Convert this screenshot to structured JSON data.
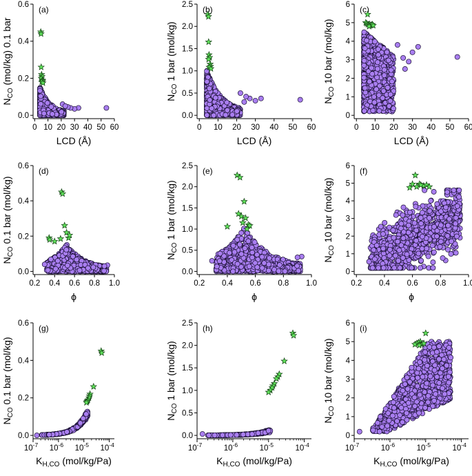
{
  "colors": {
    "point_fill": "#a97ef0",
    "point_edge": "#1a1033",
    "star_fill": "#5fe05a",
    "star_edge": "#124012"
  },
  "chart_data": [
    {
      "id": "a",
      "panel_label": "(a)",
      "type": "scatter",
      "xlabel": "LCD (Å)",
      "ylabel_main": "N",
      "ylabel_sub": "CO",
      "ylabel_rest": " (mol/kg) 0.1 bar",
      "xlim": [
        0,
        60
      ],
      "ylim": [
        0,
        0.6
      ],
      "xticks": [
        0,
        10,
        20,
        30,
        40,
        50,
        60
      ],
      "xtick_labels": [
        "0",
        "10",
        "20",
        "30",
        "40",
        "50",
        "60"
      ],
      "yticks": [
        0,
        0.2,
        0.4,
        0.6
      ],
      "ytick_labels": [
        "0.0",
        "0.2",
        "0.4",
        "0.6"
      ],
      "xscale": "linear",
      "shape": "lcd",
      "ymax_bulk": 0.14,
      "stars": [
        [
          4.6,
          0.45
        ],
        [
          4.8,
          0.44
        ],
        [
          4.9,
          0.26
        ],
        [
          5.2,
          0.22
        ],
        [
          5.5,
          0.21
        ],
        [
          5.0,
          0.2
        ],
        [
          5.8,
          0.19
        ],
        [
          6.0,
          0.185
        ],
        [
          5.3,
          0.18
        ],
        [
          6.2,
          0.175
        ]
      ],
      "outliers": [
        [
          54,
          0.04
        ],
        [
          33,
          0.04
        ],
        [
          30,
          0.035
        ],
        [
          27,
          0.04
        ],
        [
          25,
          0.045
        ],
        [
          21,
          0.06
        ],
        [
          23,
          0.05
        ]
      ]
    },
    {
      "id": "b",
      "panel_label": "(b)",
      "type": "scatter",
      "xlabel": "LCD (Å)",
      "ylabel_main": "N",
      "ylabel_sub": "CO",
      "ylabel_rest": " 1 bar (mol/kg)",
      "xlim": [
        0,
        60
      ],
      "ylim": [
        0,
        2.5
      ],
      "xticks": [
        0,
        10,
        20,
        30,
        40,
        50,
        60
      ],
      "xtick_labels": [
        "0",
        "10",
        "20",
        "30",
        "40",
        "50",
        "60"
      ],
      "yticks": [
        0,
        0.5,
        1.0,
        1.5,
        2.0,
        2.5
      ],
      "ytick_labels": [
        "0.0",
        "0.5",
        "1.0",
        "1.5",
        "2.0",
        "2.5"
      ],
      "xscale": "linear",
      "shape": "lcd",
      "ymax_bulk": 0.95,
      "stars": [
        [
          4.6,
          2.27
        ],
        [
          4.9,
          2.22
        ],
        [
          5.0,
          1.65
        ],
        [
          5.2,
          1.36
        ],
        [
          5.5,
          1.3
        ],
        [
          5.0,
          1.26
        ],
        [
          5.8,
          1.15
        ],
        [
          6.0,
          1.1
        ],
        [
          5.3,
          1.08
        ],
        [
          6.2,
          1.05
        ]
      ],
      "outliers": [
        [
          54,
          0.35
        ],
        [
          33,
          0.38
        ],
        [
          30,
          0.33
        ],
        [
          27,
          0.38
        ],
        [
          25,
          0.42
        ],
        [
          22,
          0.5
        ],
        [
          24,
          0.3
        ]
      ]
    },
    {
      "id": "c",
      "panel_label": "(c)",
      "type": "scatter",
      "xlabel": "LCD (Å)",
      "ylabel_main": "N",
      "ylabel_sub": "CO",
      "ylabel_rest": " 10 bar (mol/kg)",
      "xlim": [
        0,
        60
      ],
      "ylim": [
        0,
        6
      ],
      "xticks": [
        0,
        10,
        20,
        30,
        40,
        50,
        60
      ],
      "xtick_labels": [
        "0",
        "10",
        "20",
        "30",
        "40",
        "50",
        "60"
      ],
      "yticks": [
        0,
        1,
        2,
        3,
        4,
        5,
        6
      ],
      "ytick_labels": [
        "0",
        "1",
        "2",
        "3",
        "4",
        "5",
        "6"
      ],
      "xscale": "linear",
      "shape": "lcd10",
      "ymax_bulk": 4.5,
      "stars": [
        [
          6.0,
          5.45
        ],
        [
          5.0,
          5.0
        ],
        [
          5.5,
          4.95
        ],
        [
          6.2,
          4.9
        ],
        [
          7.0,
          4.92
        ],
        [
          7.5,
          4.85
        ],
        [
          8.0,
          4.88
        ],
        [
          6.8,
          4.8
        ],
        [
          8.5,
          4.9
        ],
        [
          9.0,
          4.85
        ]
      ],
      "outliers": [
        [
          54,
          3.15
        ],
        [
          33,
          3.7
        ],
        [
          30,
          3.4
        ],
        [
          28,
          2.9
        ],
        [
          25,
          3.1
        ],
        [
          22,
          3.8
        ],
        [
          26,
          2.5
        ]
      ]
    },
    {
      "id": "d",
      "panel_label": "(d)",
      "type": "scatter",
      "xlabel": "ϕ",
      "ylabel_main": "N",
      "ylabel_sub": "CO",
      "ylabel_rest": " 0.1 bar (mol/kg)",
      "xlim": [
        0.2,
        1.0
      ],
      "ylim": [
        0,
        0.6
      ],
      "xticks": [
        0.2,
        0.4,
        0.6,
        0.8,
        1.0
      ],
      "xtick_labels": [
        "0.2",
        "0.4",
        "0.6",
        "0.8",
        "1.0"
      ],
      "yticks": [
        0,
        0.2,
        0.4,
        0.6
      ],
      "ytick_labels": [
        "0.0",
        "0.2",
        "0.4",
        "0.6"
      ],
      "xscale": "linear",
      "shape": "phi",
      "ymax_bulk": 0.14,
      "stars": [
        [
          0.47,
          0.45
        ],
        [
          0.48,
          0.44
        ],
        [
          0.5,
          0.26
        ],
        [
          0.345,
          0.19
        ],
        [
          0.35,
          0.18
        ],
        [
          0.4,
          0.17
        ],
        [
          0.52,
          0.22
        ],
        [
          0.54,
          0.19
        ],
        [
          0.55,
          0.205
        ],
        [
          0.46,
          0.185
        ]
      ],
      "outliers": [
        [
          0.3,
          0.04
        ],
        [
          0.93,
          0.035
        ],
        [
          0.9,
          0.03
        ]
      ]
    },
    {
      "id": "e",
      "panel_label": "(e)",
      "type": "scatter",
      "xlabel": "ϕ",
      "ylabel_main": "N",
      "ylabel_sub": "CO",
      "ylabel_rest": " 1 bar (mol/kg)",
      "xlim": [
        0.2,
        1.0
      ],
      "ylim": [
        0,
        2.5
      ],
      "xticks": [
        0.2,
        0.4,
        0.6,
        0.8,
        1.0
      ],
      "xtick_labels": [
        "0.2",
        "0.4",
        "0.6",
        "0.8",
        "1.0"
      ],
      "yticks": [
        0,
        0.5,
        1.0,
        1.5,
        2.0,
        2.5
      ],
      "ytick_labels": [
        "0.0",
        "0.5",
        "1.0",
        "1.5",
        "2.0",
        "2.5"
      ],
      "xscale": "linear",
      "shape": "phi",
      "ymax_bulk": 0.95,
      "stars": [
        [
          0.47,
          2.27
        ],
        [
          0.49,
          2.22
        ],
        [
          0.52,
          1.65
        ],
        [
          0.48,
          1.36
        ],
        [
          0.5,
          1.3
        ],
        [
          0.53,
          1.26
        ],
        [
          0.51,
          1.15
        ],
        [
          0.55,
          1.1
        ],
        [
          0.56,
          1.08
        ],
        [
          0.4,
          1.06
        ],
        [
          0.54,
          1.0
        ]
      ],
      "outliers": [
        [
          0.29,
          0.25
        ],
        [
          0.93,
          0.35
        ],
        [
          0.9,
          0.33
        ]
      ]
    },
    {
      "id": "f",
      "panel_label": "(f)",
      "type": "scatter",
      "xlabel": "ϕ",
      "ylabel_main": "N",
      "ylabel_sub": "CO",
      "ylabel_rest": " 10 bar (mol/kg)",
      "xlim": [
        0.2,
        1.0
      ],
      "ylim": [
        0,
        6
      ],
      "xticks": [
        0.2,
        0.4,
        0.6,
        0.8,
        1.0
      ],
      "xtick_labels": [
        "0.2",
        "0.4",
        "0.6",
        "0.8",
        "1.0"
      ],
      "yticks": [
        0,
        1,
        2,
        3,
        4,
        5,
        6
      ],
      "ytick_labels": [
        "0",
        "1",
        "2",
        "3",
        "4",
        "5",
        "6"
      ],
      "xscale": "linear",
      "shape": "phi10",
      "ymax_bulk": 4.5,
      "stars": [
        [
          0.62,
          5.45
        ],
        [
          0.6,
          4.95
        ],
        [
          0.65,
          4.95
        ],
        [
          0.68,
          4.85
        ],
        [
          0.7,
          4.9
        ],
        [
          0.63,
          4.8
        ],
        [
          0.66,
          4.9
        ],
        [
          0.72,
          4.8
        ],
        [
          0.58,
          4.75
        ]
      ],
      "outliers": [
        [
          0.29,
          0.55
        ],
        [
          0.93,
          3.5
        ],
        [
          0.92,
          3.7
        ]
      ]
    },
    {
      "id": "g",
      "panel_label": "(g)",
      "type": "scatter",
      "xlabel_main": "K",
      "xlabel_sub": "H,CO",
      "xlabel_rest": " (mol/kg/Pa)",
      "ylabel_main": "N",
      "ylabel_sub": "CO",
      "ylabel_rest": " 0.1 bar (mol/kg)",
      "xlim_log10": [
        -7,
        -3.8
      ],
      "ylim": [
        0,
        0.6
      ],
      "xticks_log10": [
        -7,
        -6,
        -5,
        -4
      ],
      "xtick_bases": [
        "10",
        "10",
        "10",
        "10"
      ],
      "xtick_exps": [
        "-7",
        "-6",
        "-5",
        "-4"
      ],
      "yticks": [
        0,
        0.2,
        0.4,
        0.6
      ],
      "ytick_labels": [
        "0.0",
        "0.2",
        "0.4",
        "0.6"
      ],
      "xscale": "log",
      "shape": "k01",
      "stars": [
        [
          -4.32,
          0.45
        ],
        [
          -4.3,
          0.44
        ],
        [
          -4.62,
          0.26
        ],
        [
          -4.76,
          0.22
        ],
        [
          -4.78,
          0.21
        ],
        [
          -4.8,
          0.2
        ],
        [
          -4.84,
          0.19
        ],
        [
          -4.86,
          0.185
        ],
        [
          -4.88,
          0.18
        ],
        [
          -4.9,
          0.175
        ]
      ],
      "outliers": [
        [
          -6.85,
          0.0
        ]
      ]
    },
    {
      "id": "h",
      "panel_label": "(h)",
      "type": "scatter",
      "xlabel_main": "K",
      "xlabel_sub": "H,CO",
      "xlabel_rest": " (mol/kg/Pa)",
      "ylabel_main": "N",
      "ylabel_sub": "CO",
      "ylabel_rest": " 1 bar (mol/kg)",
      "xlim_log10": [
        -7,
        -3.8
      ],
      "ylim": [
        0,
        2.5
      ],
      "xticks_log10": [
        -7,
        -6,
        -5,
        -4
      ],
      "xtick_bases": [
        "10",
        "10",
        "10",
        "10"
      ],
      "xtick_exps": [
        "-7",
        "-6",
        "-5",
        "-4"
      ],
      "yticks": [
        0,
        0.5,
        1.0,
        1.5,
        2.0,
        2.5
      ],
      "ytick_labels": [
        "0.0",
        "0.5",
        "1.0",
        "1.5",
        "2.0",
        "2.5"
      ],
      "xscale": "log",
      "shape": "k1",
      "stars": [
        [
          -4.32,
          2.27
        ],
        [
          -4.3,
          2.22
        ],
        [
          -4.56,
          1.65
        ],
        [
          -4.7,
          1.36
        ],
        [
          -4.74,
          1.3
        ],
        [
          -4.78,
          1.26
        ],
        [
          -4.84,
          1.15
        ],
        [
          -4.88,
          1.1
        ],
        [
          -4.9,
          1.06
        ],
        [
          -4.95,
          1.0
        ],
        [
          -5.0,
          0.96
        ]
      ],
      "outliers": [
        [
          -6.85,
          0.03
        ]
      ]
    },
    {
      "id": "i",
      "panel_label": "(i)",
      "type": "scatter",
      "xlabel_main": "K",
      "xlabel_sub": "H,CO",
      "xlabel_rest": " (mol/kg/Pa)",
      "ylabel_main": "N",
      "ylabel_sub": "CO",
      "ylabel_rest": " 10 bar (mol/kg)",
      "xlim_log10": [
        -7,
        -3.8
      ],
      "ylim": [
        0,
        6
      ],
      "xticks_log10": [
        -7,
        -6,
        -5,
        -4
      ],
      "xtick_bases": [
        "10",
        "10",
        "10",
        "10"
      ],
      "xtick_exps": [
        "-7",
        "-6",
        "-5",
        "-4"
      ],
      "yticks": [
        0,
        1,
        2,
        3,
        4,
        5,
        6
      ],
      "ytick_labels": [
        "0",
        "1",
        "2",
        "3",
        "4",
        "5",
        "6"
      ],
      "xscale": "log",
      "shape": "k10",
      "stars": [
        [
          -5.0,
          5.45
        ],
        [
          -5.15,
          5.0
        ],
        [
          -5.2,
          4.95
        ],
        [
          -5.25,
          4.9
        ],
        [
          -5.1,
          4.85
        ],
        [
          -5.3,
          4.85
        ],
        [
          -5.05,
          4.9
        ],
        [
          -5.18,
          4.8
        ]
      ],
      "outliers": [
        [
          -6.85,
          0.2
        ],
        [
          -4.32,
          4.2
        ],
        [
          -4.3,
          4.15
        ]
      ]
    }
  ]
}
